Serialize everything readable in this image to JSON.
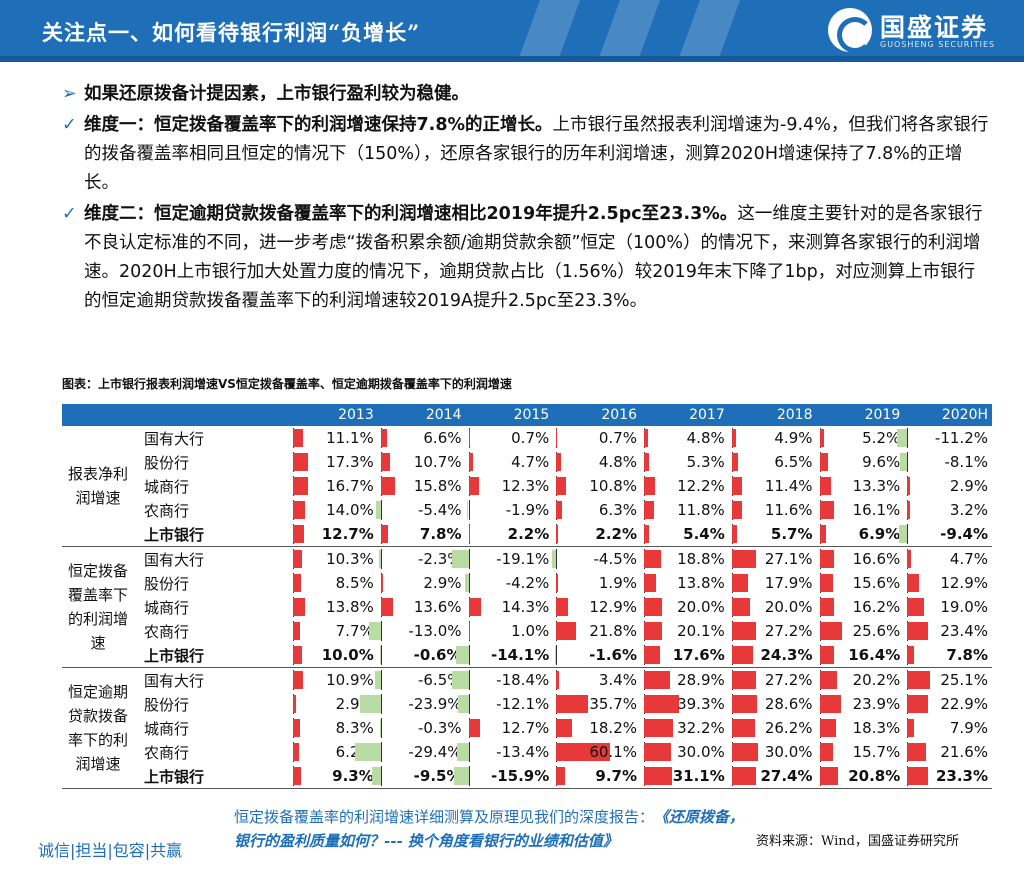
{
  "header": {
    "title": "关注点一、如何看待银行利润“负增长”",
    "logo_name": "国盛证券",
    "logo_en": "GUOSHENG SECURITIES"
  },
  "bullets": {
    "b0_mark": "➢",
    "b0_text": "如果还原拨备计提因素，上市银行盈利较为稳健。",
    "b1_mark": "✓",
    "b1_bold": "维度一：恒定拨备覆盖率下的利润增速保持7.8%的正增长。",
    "b1_text": "上市银行虽然报表利润增速为-9.4%，但我们将各家银行的拨备覆盖率相同且恒定的情况下（150%），还原各家银行的历年利润增速，测算2020H增速保持了7.8%的正增长。",
    "b2_mark": "✓",
    "b2_bold": "维度二：恒定逾期贷款拨备覆盖率下的利润增速相比2019年提升2.5pc至23.3%。",
    "b2_text": "这一维度主要针对的是各家银行不良认定标准的不同，进一步考虑“拨备积累余额/逾期贷款余额”恒定（100%）的情况下，来测算各家银行的利润增速。2020H上市银行加大处置力度的情况下，逾期贷款占比（1.56%）较2019年末下降了1bp，对应测算上市银行的恒定逾期贷款拨备覆盖率下的利润增速较2019A提升2.5pc至23.3%。"
  },
  "caption": "图表：上市银行报表利润增速VS恒定拨备覆盖率、恒定逾期拨备覆盖率下的利润增速",
  "chart_data": {
    "type": "table",
    "title": "图表：上市银行报表利润增速VS恒定拨备覆盖率、恒定逾期拨备覆盖率下的利润增速",
    "columns": [
      "2013",
      "2014",
      "2015",
      "2016",
      "2017",
      "2018",
      "2019",
      "2020H"
    ],
    "bar_scale_max": 90,
    "positive_color": "#e8393a",
    "negative_color": "#b9dca4",
    "groups": [
      {
        "name": "报表净利润增速",
        "rows": [
          {
            "bank": "国有大行",
            "total": false,
            "values": [
              11.1,
              6.6,
              0.7,
              0.7,
              4.8,
              4.9,
              5.2,
              -11.2
            ],
            "labels": [
              "11.1%",
              "6.6%",
              "0.7%",
              "0.7%",
              "4.8%",
              "4.9%",
              "5.2%",
              "-11.2%"
            ]
          },
          {
            "bank": "股份行",
            "total": false,
            "values": [
              17.3,
              10.7,
              4.7,
              4.8,
              5.3,
              6.5,
              9.6,
              -8.1
            ],
            "labels": [
              "17.3%",
              "10.7%",
              "4.7%",
              "4.8%",
              "5.3%",
              "6.5%",
              "9.6%",
              "-8.1%"
            ]
          },
          {
            "bank": "城商行",
            "total": false,
            "values": [
              16.7,
              15.8,
              12.3,
              10.8,
              12.2,
              11.4,
              13.3,
              2.9
            ],
            "labels": [
              "16.7%",
              "15.8%",
              "12.3%",
              "10.8%",
              "12.2%",
              "11.4%",
              "13.3%",
              "2.9%"
            ]
          },
          {
            "bank": "农商行",
            "total": false,
            "values": [
              14.0,
              -5.4,
              -1.9,
              6.3,
              11.8,
              11.6,
              16.1,
              3.2
            ],
            "labels": [
              "14.0%",
              "-5.4%",
              "-1.9%",
              "6.3%",
              "11.8%",
              "11.6%",
              "16.1%",
              "3.2%"
            ]
          },
          {
            "bank": "上市银行",
            "total": true,
            "values": [
              12.7,
              7.8,
              2.2,
              2.2,
              5.4,
              5.7,
              6.9,
              -9.4
            ],
            "labels": [
              "12.7%",
              "7.8%",
              "2.2%",
              "2.2%",
              "5.4%",
              "5.7%",
              "6.9%",
              "-9.4%"
            ]
          }
        ]
      },
      {
        "name": "恒定拨备覆盖率下的利润增速",
        "rows": [
          {
            "bank": "国有大行",
            "total": false,
            "values": [
              10.3,
              -2.3,
              -19.1,
              -4.5,
              18.8,
              27.1,
              16.6,
              4.7
            ],
            "labels": [
              "10.3%",
              "-2.3%",
              "-19.1%",
              "-4.5%",
              "18.8%",
              "27.1%",
              "16.6%",
              "4.7%"
            ]
          },
          {
            "bank": "股份行",
            "total": false,
            "values": [
              8.5,
              2.9,
              -4.2,
              1.9,
              13.8,
              17.9,
              15.6,
              12.9
            ],
            "labels": [
              "8.5%",
              "2.9%",
              "-4.2%",
              "1.9%",
              "13.8%",
              "17.9%",
              "15.6%",
              "12.9%"
            ]
          },
          {
            "bank": "城商行",
            "total": false,
            "values": [
              13.8,
              13.6,
              14.3,
              12.9,
              20.0,
              20.0,
              16.2,
              19.0
            ],
            "labels": [
              "13.8%",
              "13.6%",
              "14.3%",
              "12.9%",
              "20.0%",
              "20.0%",
              "16.2%",
              "19.0%"
            ]
          },
          {
            "bank": "农商行",
            "total": false,
            "values": [
              7.7,
              -13.0,
              1.0,
              21.8,
              20.1,
              27.2,
              25.6,
              23.4
            ],
            "labels": [
              "7.7%",
              "-13.0%",
              "1.0%",
              "21.8%",
              "20.1%",
              "27.2%",
              "25.6%",
              "23.4%"
            ]
          },
          {
            "bank": "上市银行",
            "total": true,
            "values": [
              10.0,
              -0.6,
              -14.1,
              -1.6,
              17.6,
              24.3,
              16.4,
              7.8
            ],
            "labels": [
              "10.0%",
              "-0.6%",
              "-14.1%",
              "-1.6%",
              "17.6%",
              "24.3%",
              "16.4%",
              "7.8%"
            ]
          }
        ]
      },
      {
        "name": "恒定逾期贷款拨备率下的利润增速",
        "rows": [
          {
            "bank": "国有大行",
            "total": false,
            "values": [
              10.9,
              -6.5,
              -18.4,
              3.4,
              28.9,
              27.2,
              20.2,
              25.1
            ],
            "labels": [
              "10.9%",
              "-6.5%",
              "-18.4%",
              "3.4%",
              "28.9%",
              "27.2%",
              "20.2%",
              "25.1%"
            ]
          },
          {
            "bank": "股份行",
            "total": false,
            "values": [
              2.9,
              -23.9,
              -12.1,
              35.7,
              39.3,
              28.6,
              23.9,
              22.9
            ],
            "labels": [
              "2.9%",
              "-23.9%",
              "-12.1%",
              "35.7%",
              "39.3%",
              "28.6%",
              "23.9%",
              "22.9%"
            ]
          },
          {
            "bank": "城商行",
            "total": false,
            "values": [
              8.3,
              -0.3,
              12.7,
              18.2,
              32.2,
              26.2,
              18.3,
              7.9
            ],
            "labels": [
              "8.3%",
              "-0.3%",
              "12.7%",
              "18.2%",
              "32.2%",
              "26.2%",
              "18.3%",
              "7.9%"
            ]
          },
          {
            "bank": "农商行",
            "total": false,
            "values": [
              6.2,
              -29.4,
              -13.4,
              60.1,
              30.0,
              30.0,
              15.7,
              21.6
            ],
            "labels": [
              "6.2%",
              "-29.4%",
              "-13.4%",
              "60.1%",
              "30.0%",
              "30.0%",
              "15.7%",
              "21.6%"
            ]
          },
          {
            "bank": "上市银行",
            "total": true,
            "values": [
              9.3,
              -9.5,
              -15.9,
              9.7,
              31.1,
              27.4,
              20.8,
              23.3
            ],
            "labels": [
              "9.3%",
              "-9.5%",
              "-15.9%",
              "9.7%",
              "31.1%",
              "27.4%",
              "20.8%",
              "23.3%"
            ]
          }
        ]
      }
    ]
  },
  "footer": {
    "slogan": "诚信|担当|包容|共赢",
    "note_text": "恒定拨备覆盖率的利润增速详细测算及原理见我们的深度报告：",
    "note_title": "《还原拨备，银行的盈利质量如何？--- 换个角度看银行的业绩和估值》",
    "source": "资料来源：Wind，国盛证券研究所"
  }
}
